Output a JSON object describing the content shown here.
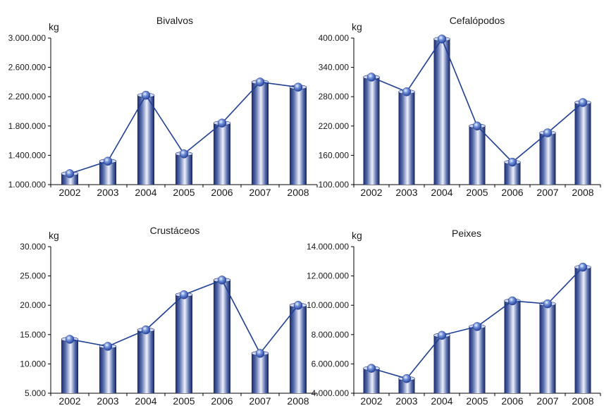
{
  "chart_data": [
    {
      "type": "bar",
      "title": "Bivalvos",
      "ylabel": "kg",
      "xlabel": "",
      "categories": [
        "2002",
        "2003",
        "2004",
        "2005",
        "2006",
        "2007",
        "2008"
      ],
      "values": [
        1150000,
        1320000,
        2220000,
        1420000,
        1840000,
        2400000,
        2330000
      ],
      "ylim": [
        1000000,
        3000000
      ],
      "yticks": [
        1000000,
        1400000,
        1800000,
        2200000,
        2600000,
        3000000
      ],
      "ytick_labels": [
        "1.000.000",
        "1.400.000",
        "1.800.000",
        "2.200.000",
        "2.600.000",
        "3.000.000"
      ],
      "overlay": "line",
      "grid": false
    },
    {
      "type": "bar",
      "title": "Cefalópodos",
      "ylabel": "kg",
      "xlabel": "",
      "categories": [
        "2002",
        "2003",
        "2004",
        "2005",
        "2006",
        "2007",
        "2008"
      ],
      "values": [
        320000,
        290000,
        398000,
        220000,
        146000,
        206000,
        268000
      ],
      "ylim": [
        100000,
        400000
      ],
      "yticks": [
        100000,
        160000,
        220000,
        280000,
        340000,
        400000
      ],
      "ytick_labels": [
        "100.000",
        "160.000",
        "220.000",
        "280.000",
        "340.000",
        "400.000"
      ],
      "overlay": "line",
      "grid": false
    },
    {
      "type": "bar",
      "title": "Crustáceos",
      "ylabel": "kg",
      "xlabel": "",
      "categories": [
        "2002",
        "2003",
        "2004",
        "2005",
        "2006",
        "2007",
        "2008"
      ],
      "values": [
        14200,
        13000,
        15800,
        21800,
        24300,
        11800,
        20000
      ],
      "ylim": [
        5000,
        30000
      ],
      "yticks": [
        5000,
        10000,
        15000,
        20000,
        25000,
        30000
      ],
      "ytick_labels": [
        "5.000",
        "10.000",
        "15.000",
        "20.000",
        "25.000",
        "30.000"
      ],
      "overlay": "line",
      "grid": false
    },
    {
      "type": "bar",
      "title": "Peixes",
      "ylabel": "kg",
      "xlabel": "",
      "categories": [
        "2002",
        "2003",
        "2004",
        "2005",
        "2006",
        "2007",
        "2008"
      ],
      "values": [
        5700000,
        5000000,
        7950000,
        8550000,
        10300000,
        10100000,
        12600000
      ],
      "ylim": [
        4000000,
        14000000
      ],
      "yticks": [
        4000000,
        6000000,
        8000000,
        10000000,
        12000000,
        14000000
      ],
      "ytick_labels": [
        "4.000.000",
        "6.000.000",
        "8.000.000",
        "10.000.000",
        "12.000.000",
        "14.000.000"
      ],
      "overlay": "line",
      "grid": false
    }
  ],
  "colors": {
    "bar_dark": "#1a2a6c",
    "bar_mid": "#5a6fae",
    "bar_light": "#dfe5f6",
    "line": "#1f3f96",
    "marker_light": "#cfe0ff",
    "marker_dark": "#2a4fb5"
  }
}
